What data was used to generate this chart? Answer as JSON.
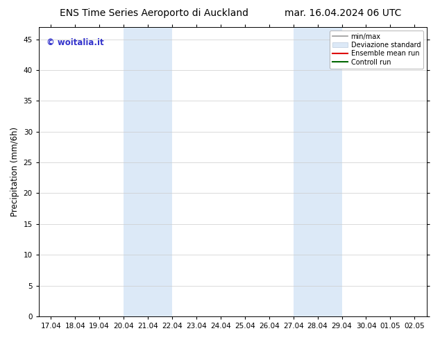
{
  "title_left": "ENS Time Series Aeroporto di Auckland",
  "title_right": "mar. 16.04.2024 06 UTC",
  "ylabel": "Precipitation (mm/6h)",
  "xlabel_ticks": [
    "17.04",
    "18.04",
    "19.04",
    "20.04",
    "21.04",
    "22.04",
    "23.04",
    "24.04",
    "25.04",
    "26.04",
    "27.04",
    "28.04",
    "29.04",
    "30.04",
    "01.05",
    "02.05"
  ],
  "ylim": [
    0,
    47
  ],
  "yticks": [
    0,
    5,
    10,
    15,
    20,
    25,
    30,
    35,
    40,
    45
  ],
  "shade_regions": [
    {
      "xstart_idx": 3,
      "xend_idx": 5,
      "color": "#dce9f7"
    },
    {
      "xstart_idx": 10,
      "xend_idx": 12,
      "color": "#dce9f7"
    }
  ],
  "watermark_text": "© woitalia.it",
  "watermark_color": "#3333cc",
  "legend_labels": [
    "min/max",
    "Deviazione standard",
    "Ensemble mean run",
    "Controll run"
  ],
  "legend_line_colors": [
    "#999999",
    "#bbccdd",
    "#dd0000",
    "#006600"
  ],
  "legend_patch_color": "#dce9f7",
  "background_color": "#ffffff",
  "plot_bg_color": "#ffffff",
  "spine_color": "#000000",
  "grid_color": "#cccccc",
  "title_fontsize": 10,
  "tick_fontsize": 7.5,
  "ylabel_fontsize": 8.5,
  "watermark_fontsize": 8.5,
  "legend_fontsize": 7
}
